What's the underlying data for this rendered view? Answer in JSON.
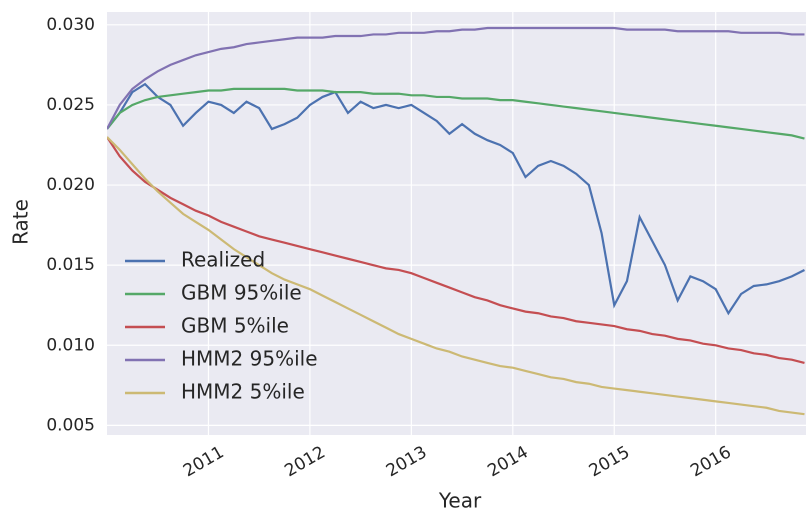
{
  "chart_data": {
    "type": "line",
    "xlabel": "Year",
    "ylabel": "Rate",
    "x": [
      2010,
      2010.125,
      2010.25,
      2010.375,
      2010.5,
      2010.625,
      2010.75,
      2010.875,
      2011,
      2011.125,
      2011.25,
      2011.375,
      2011.5,
      2011.625,
      2011.75,
      2011.875,
      2012,
      2012.125,
      2012.25,
      2012.375,
      2012.5,
      2012.625,
      2012.75,
      2012.875,
      2013,
      2013.125,
      2013.25,
      2013.375,
      2013.5,
      2013.625,
      2013.75,
      2013.875,
      2014,
      2014.125,
      2014.25,
      2014.375,
      2014.5,
      2014.625,
      2014.75,
      2014.875,
      2015,
      2015.125,
      2015.25,
      2015.375,
      2015.5,
      2015.625,
      2015.75,
      2015.875,
      2016,
      2016.125,
      2016.25,
      2016.375,
      2016.5,
      2016.625,
      2016.75,
      2016.875
    ],
    "series": [
      {
        "name": "Realized",
        "color": "#4c72b0",
        "values": [
          0.0235,
          0.0245,
          0.0258,
          0.0263,
          0.0255,
          0.025,
          0.0237,
          0.0245,
          0.0252,
          0.025,
          0.0245,
          0.0252,
          0.0248,
          0.0235,
          0.0238,
          0.0242,
          0.025,
          0.0255,
          0.0258,
          0.0245,
          0.0252,
          0.0248,
          0.025,
          0.0248,
          0.025,
          0.0245,
          0.024,
          0.0232,
          0.0238,
          0.0232,
          0.0228,
          0.0225,
          0.022,
          0.0205,
          0.0212,
          0.0215,
          0.0212,
          0.0207,
          0.02,
          0.017,
          0.0125,
          0.014,
          0.018,
          0.0165,
          0.015,
          0.0128,
          0.0143,
          0.014,
          0.0135,
          0.012,
          0.0132,
          0.0137,
          0.0138,
          0.014,
          0.0143,
          0.0147
        ]
      },
      {
        "name": "GBM 95%ile",
        "color": "#55a868",
        "values": [
          0.0235,
          0.0245,
          0.025,
          0.0253,
          0.0255,
          0.0256,
          0.0257,
          0.0258,
          0.0259,
          0.0259,
          0.026,
          0.026,
          0.026,
          0.026,
          0.026,
          0.0259,
          0.0259,
          0.0259,
          0.0258,
          0.0258,
          0.0258,
          0.0257,
          0.0257,
          0.0257,
          0.0256,
          0.0256,
          0.0255,
          0.0255,
          0.0254,
          0.0254,
          0.0254,
          0.0253,
          0.0253,
          0.0252,
          0.0251,
          0.025,
          0.0249,
          0.0248,
          0.0247,
          0.0246,
          0.0245,
          0.0244,
          0.0243,
          0.0242,
          0.0241,
          0.024,
          0.0239,
          0.0238,
          0.0237,
          0.0236,
          0.0235,
          0.0234,
          0.0233,
          0.0232,
          0.0231,
          0.0229
        ]
      },
      {
        "name": "GBM 5%ile",
        "color": "#c44e52",
        "values": [
          0.023,
          0.0218,
          0.0209,
          0.0202,
          0.0197,
          0.0192,
          0.0188,
          0.0184,
          0.0181,
          0.0177,
          0.0174,
          0.0171,
          0.0168,
          0.0166,
          0.0164,
          0.0162,
          0.016,
          0.0158,
          0.0156,
          0.0154,
          0.0152,
          0.015,
          0.0148,
          0.0147,
          0.0145,
          0.0142,
          0.0139,
          0.0136,
          0.0133,
          0.013,
          0.0128,
          0.0125,
          0.0123,
          0.0121,
          0.012,
          0.0118,
          0.0117,
          0.0115,
          0.0114,
          0.0113,
          0.0112,
          0.011,
          0.0109,
          0.0107,
          0.0106,
          0.0104,
          0.0103,
          0.0101,
          0.01,
          0.0098,
          0.0097,
          0.0095,
          0.0094,
          0.0092,
          0.0091,
          0.0089
        ]
      },
      {
        "name": "HMM2 95%ile",
        "color": "#8172b2",
        "values": [
          0.0235,
          0.025,
          0.026,
          0.0266,
          0.0271,
          0.0275,
          0.0278,
          0.0281,
          0.0283,
          0.0285,
          0.0286,
          0.0288,
          0.0289,
          0.029,
          0.0291,
          0.0292,
          0.0292,
          0.0292,
          0.0293,
          0.0293,
          0.0293,
          0.0294,
          0.0294,
          0.0295,
          0.0295,
          0.0295,
          0.0296,
          0.0296,
          0.0297,
          0.0297,
          0.0298,
          0.0298,
          0.0298,
          0.0298,
          0.0298,
          0.0298,
          0.0298,
          0.0298,
          0.0298,
          0.0298,
          0.0298,
          0.0297,
          0.0297,
          0.0297,
          0.0297,
          0.0296,
          0.0296,
          0.0296,
          0.0296,
          0.0296,
          0.0295,
          0.0295,
          0.0295,
          0.0295,
          0.0294,
          0.0294
        ]
      },
      {
        "name": "HMM2 5%ile",
        "color": "#ccb974",
        "values": [
          0.023,
          0.0222,
          0.0213,
          0.0204,
          0.0196,
          0.0189,
          0.0182,
          0.0177,
          0.0172,
          0.0166,
          0.016,
          0.0155,
          0.015,
          0.0145,
          0.0141,
          0.0138,
          0.0135,
          0.0131,
          0.0127,
          0.0123,
          0.0119,
          0.0115,
          0.0111,
          0.0107,
          0.0104,
          0.0101,
          0.0098,
          0.0096,
          0.0093,
          0.0091,
          0.0089,
          0.0087,
          0.0086,
          0.0084,
          0.0082,
          0.008,
          0.0079,
          0.0077,
          0.0076,
          0.0074,
          0.0073,
          0.0072,
          0.0071,
          0.007,
          0.0069,
          0.0068,
          0.0067,
          0.0066,
          0.0065,
          0.0064,
          0.0063,
          0.0062,
          0.0061,
          0.0059,
          0.0058,
          0.0057
        ]
      }
    ],
    "xlim": [
      2010,
      2016.89
    ],
    "xticks": [
      2011,
      2012,
      2013,
      2014,
      2015,
      2016
    ],
    "ylim": [
      0.0044,
      0.0308
    ],
    "yticks": [
      0.005,
      {
        "value": 0.01,
        "label": "0.010"
      },
      0.015,
      {
        "value": 0.02,
        "label": "0.020"
      },
      0.025,
      {
        "value": 0.03,
        "label": "0.030"
      }
    ],
    "grid": true,
    "legend": "lower left"
  }
}
